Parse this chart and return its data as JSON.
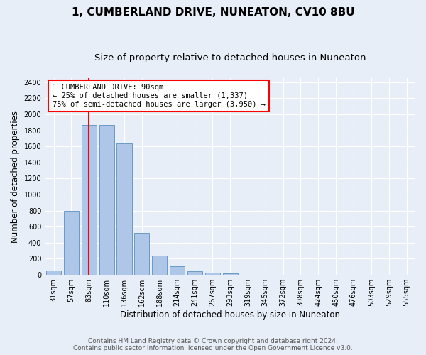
{
  "title": "1, CUMBERLAND DRIVE, NUNEATON, CV10 8BU",
  "subtitle": "Size of property relative to detached houses in Nuneaton",
  "xlabel": "Distribution of detached houses by size in Nuneaton",
  "ylabel": "Number of detached properties",
  "categories": [
    "31sqm",
    "57sqm",
    "83sqm",
    "110sqm",
    "136sqm",
    "162sqm",
    "188sqm",
    "214sqm",
    "241sqm",
    "267sqm",
    "293sqm",
    "319sqm",
    "345sqm",
    "372sqm",
    "398sqm",
    "424sqm",
    "450sqm",
    "476sqm",
    "503sqm",
    "529sqm",
    "555sqm"
  ],
  "values": [
    50,
    800,
    1870,
    1870,
    1640,
    520,
    240,
    105,
    45,
    30,
    15,
    0,
    0,
    0,
    0,
    0,
    0,
    0,
    0,
    0,
    0
  ],
  "bar_color": "#aec6e8",
  "bar_edge_color": "#5a8fc0",
  "vline_x": 2.0,
  "annotation_text": "1 CUMBERLAND DRIVE: 90sqm\n← 25% of detached houses are smaller (1,337)\n75% of semi-detached houses are larger (3,950) →",
  "annotation_box_color": "white",
  "annotation_box_edge_color": "red",
  "vline_color": "red",
  "ylim": [
    0,
    2450
  ],
  "yticks": [
    0,
    200,
    400,
    600,
    800,
    1000,
    1200,
    1400,
    1600,
    1800,
    2000,
    2200,
    2400
  ],
  "background_color": "#e8eef7",
  "grid_color": "white",
  "footer_line1": "Contains HM Land Registry data © Crown copyright and database right 2024.",
  "footer_line2": "Contains public sector information licensed under the Open Government Licence v3.0.",
  "title_fontsize": 11,
  "subtitle_fontsize": 9.5,
  "xlabel_fontsize": 8.5,
  "ylabel_fontsize": 8.5,
  "tick_fontsize": 7,
  "annotation_fontsize": 7.5,
  "footer_fontsize": 6.5
}
